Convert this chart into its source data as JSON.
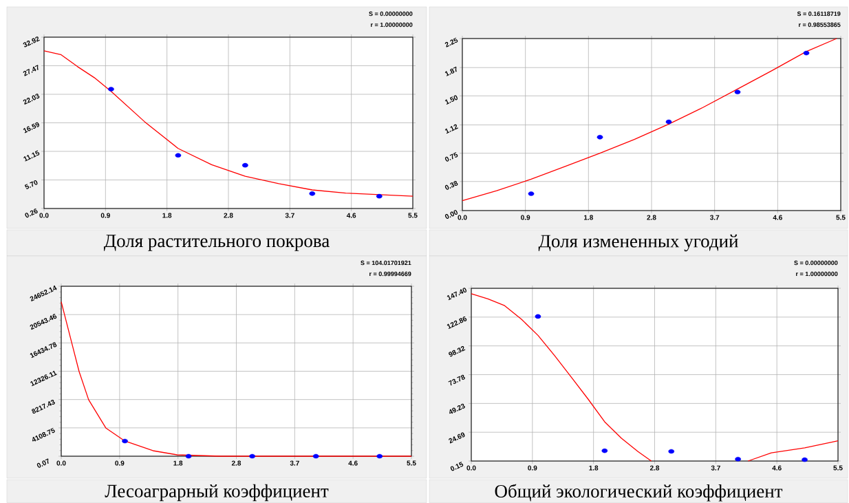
{
  "chart_data": [
    {
      "type": "scatter",
      "title": "Доля растительного покрова",
      "annotations": [
        "S = 0.00000000",
        "r = 1.00000000"
      ],
      "xlim": [
        0,
        5.5
      ],
      "ylim": [
        0.26,
        32.92
      ],
      "grid": true,
      "xticks": [
        {
          "value": 0,
          "label": "0.0"
        },
        {
          "value": 0.9167,
          "label": "0.9"
        },
        {
          "value": 1.8333,
          "label": "1.8"
        },
        {
          "value": 2.75,
          "label": "2.8"
        },
        {
          "value": 3.6667,
          "label": "3.7"
        },
        {
          "value": 4.5833,
          "label": "4.6"
        },
        {
          "value": 5.5,
          "label": "5.5"
        }
      ],
      "yticks": [
        0.26,
        {
          "value": 5.7,
          "label": "5.70"
        },
        11.15,
        16.59,
        22.03,
        27.47,
        32.92
      ],
      "series": [
        {
          "x": [
            1,
            2,
            3,
            4,
            5
          ],
          "values": [
            23.0,
            10.4,
            8.5,
            3.1,
            2.6
          ],
          "color": "#0000ff",
          "marker": "circle"
        },
        {
          "type": "line",
          "x": [
            0,
            0.25,
            0.5,
            0.75,
            1,
            1.5,
            2,
            2.5,
            3,
            3.5,
            4,
            4.5,
            5,
            5.5
          ],
          "values": [
            30.3,
            29.6,
            27.3,
            25.2,
            22.6,
            16.8,
            11.7,
            8.6,
            6.4,
            5.0,
            3.8,
            3.2,
            2.9,
            2.6
          ],
          "color": "#ff0000",
          "marker": "none",
          "line_style": "solid"
        }
      ]
    },
    {
      "type": "scatter",
      "title": "Доля измененных угодий",
      "annotations": [
        "S = 0.16118719",
        "r = 0.98553865"
      ],
      "xlim": [
        0,
        5.5
      ],
      "ylim": [
        0,
        2.25
      ],
      "grid": true,
      "xticks": [
        {
          "value": 0,
          "label": "0.0"
        },
        {
          "value": 0.9167,
          "label": "0.9"
        },
        {
          "value": 1.8333,
          "label": "1.8"
        },
        {
          "value": 2.75,
          "label": "2.8"
        },
        {
          "value": 3.6667,
          "label": "3.7"
        },
        {
          "value": 4.5833,
          "label": "4.6"
        },
        {
          "value": 5.5,
          "label": "5.5"
        }
      ],
      "yticks": [
        {
          "value": 0,
          "label": "0.00"
        },
        0.38,
        0.75,
        1.12,
        {
          "value": 1.5,
          "label": "1.50"
        },
        1.87,
        2.25
      ],
      "series": [
        {
          "x": [
            1,
            2,
            3,
            4,
            5
          ],
          "values": [
            0.22,
            0.96,
            1.16,
            1.55,
            2.06
          ],
          "color": "#0000ff",
          "marker": "circle"
        },
        {
          "type": "line",
          "x": [
            0,
            0.5,
            1,
            1.5,
            2,
            2.5,
            3,
            3.5,
            4,
            4.5,
            5,
            5.44
          ],
          "values": [
            0.13,
            0.26,
            0.41,
            0.58,
            0.75,
            0.93,
            1.13,
            1.35,
            1.59,
            1.83,
            2.08,
            2.25
          ],
          "color": "#ff0000",
          "marker": "none",
          "line_style": "solid"
        }
      ]
    },
    {
      "type": "scatter",
      "title": "Лесоаграрный коэффициент",
      "annotations": [
        "S = 104.01701921",
        "r = 0.99994669"
      ],
      "xlim": [
        0,
        5.5
      ],
      "ylim": [
        0.07,
        24652.14
      ],
      "grid": true,
      "xticks": [
        {
          "value": 0,
          "label": "0.0"
        },
        {
          "value": 0.9167,
          "label": "0.9"
        },
        {
          "value": 1.8333,
          "label": "1.8"
        },
        {
          "value": 2.75,
          "label": "2.8"
        },
        {
          "value": 3.6667,
          "label": "3.7"
        },
        {
          "value": 4.5833,
          "label": "4.6"
        },
        {
          "value": 5.5,
          "label": "5.5"
        }
      ],
      "yticks": [
        0.07,
        4108.75,
        8217.43,
        12326.11,
        16434.78,
        20543.46,
        24652.14
      ],
      "series": [
        {
          "x": [
            1,
            2,
            3,
            4,
            5
          ],
          "values": [
            2200,
            0.07,
            0.07,
            0.07,
            0.07
          ],
          "color": "#0000ff",
          "marker": "circle"
        },
        {
          "type": "line",
          "x": [
            0,
            0.28,
            0.43,
            0.7,
            1,
            1.44,
            1.82,
            2.5,
            3.5,
            5.5
          ],
          "values": [
            22400,
            12300,
            8200,
            4100,
            2200,
            800,
            200,
            0.07,
            0.07,
            0.07
          ],
          "color": "#ff0000",
          "marker": "none",
          "line_style": "solid"
        }
      ]
    },
    {
      "type": "scatter",
      "title": "Общий экологический коэффициент",
      "annotations": [
        "S = 0.00000000",
        "r = 1.00000000"
      ],
      "xlim": [
        0,
        5.5
      ],
      "ylim": [
        0.15,
        147.4
      ],
      "grid": true,
      "xticks": [
        {
          "value": 0,
          "label": "0.0"
        },
        {
          "value": 0.9167,
          "label": "0.9"
        },
        {
          "value": 1.8333,
          "label": "1.8"
        },
        {
          "value": 2.75,
          "label": "2.8"
        },
        {
          "value": 3.6667,
          "label": "3.7"
        },
        {
          "value": 4.5833,
          "label": "4.6"
        },
        {
          "value": 5.5,
          "label": "5.5"
        }
      ],
      "yticks": [
        0.15,
        24.69,
        49.23,
        73.78,
        98.32,
        122.86,
        {
          "value": 147.4,
          "label": "147.40"
        }
      ],
      "series": [
        {
          "x": [
            1,
            2,
            3,
            4,
            5
          ],
          "values": [
            123.4,
            8.9,
            8.4,
            1.8,
            1.3
          ],
          "color": "#0000ff",
          "marker": "circle"
        },
        {
          "type": "line",
          "x": [
            0,
            0.25,
            0.5,
            0.75,
            1,
            1.25,
            1.5,
            1.75,
            2,
            2.25,
            2.5,
            2.7,
            3.4,
            4.15,
            4.5,
            5,
            5.5
          ],
          "values": [
            142.8,
            138.4,
            132.6,
            121.1,
            107.3,
            90,
            71.6,
            53.1,
            33.6,
            19.7,
            8.2,
            0.15,
            null,
            0.15,
            7.1,
            11.4,
            17.4
          ],
          "color": "#ff0000",
          "marker": "none",
          "line_style": "solid"
        }
      ]
    }
  ]
}
